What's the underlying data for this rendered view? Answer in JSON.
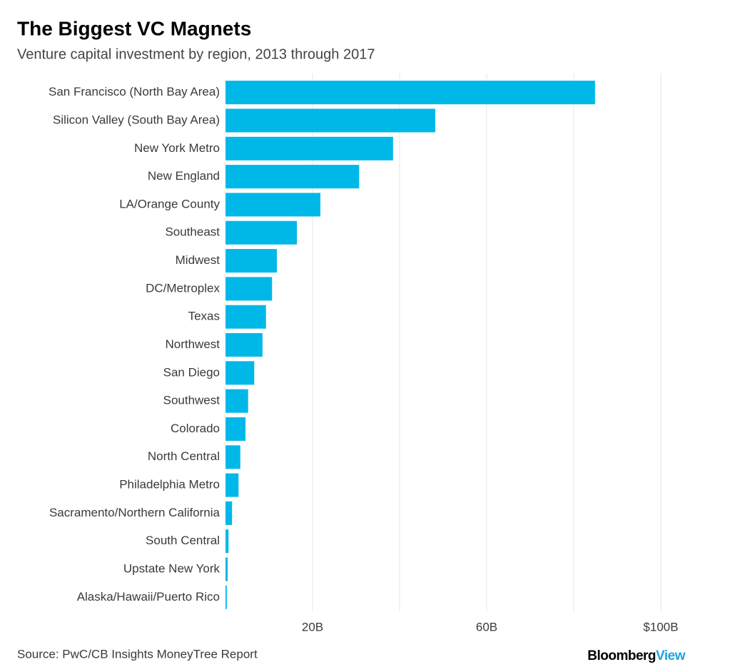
{
  "chart_data": {
    "type": "bar",
    "orientation": "horizontal",
    "title": "The Biggest VC Magnets",
    "subtitle": "Venture capital investment by region, 2013 through 2017",
    "categories": [
      "San Francisco (North Bay Area)",
      "Silicon Valley (South Bay Area)",
      "New York Metro",
      "New England",
      "LA/Orange County",
      "Southeast",
      "Midwest",
      "DC/Metroplex",
      "Texas",
      "Northwest",
      "San Diego",
      "Southwest",
      "Colorado",
      "North Central",
      "Philadelphia Metro",
      "Sacramento/Northern California",
      "South Central",
      "Upstate New York",
      "Alaska/Hawaii/Puerto Rico"
    ],
    "values": [
      84.9,
      48.2,
      38.5,
      30.7,
      21.8,
      16.4,
      11.8,
      10.7,
      9.3,
      8.5,
      6.6,
      5.2,
      4.6,
      3.4,
      3.0,
      1.5,
      0.7,
      0.5,
      0.3
    ],
    "color": "#00b8e8",
    "xlim": [
      0,
      100
    ],
    "xticks": [
      {
        "value": 20,
        "label": "20B"
      },
      {
        "value": 40,
        "label": null
      },
      {
        "value": 60,
        "label": "60B"
      },
      {
        "value": 80,
        "label": null
      },
      {
        "value": 100,
        "label": "$100B"
      }
    ],
    "grid": true,
    "source": "Source: PwC/CB Insights MoneyTree Report",
    "brand": {
      "main": "Bloomberg",
      "accent": "View"
    }
  }
}
